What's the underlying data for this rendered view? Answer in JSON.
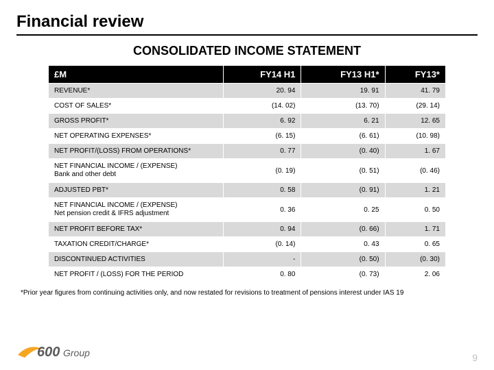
{
  "title": "Financial review",
  "subtitle": "CONSOLIDATED INCOME STATEMENT",
  "currency_label": "£M",
  "columns": [
    "FY14 H1",
    "FY13 H1*",
    "FY13*"
  ],
  "rows": [
    {
      "label": "REVENUE*",
      "vals": [
        "20. 94",
        "19. 91",
        "41. 79"
      ],
      "shade": true
    },
    {
      "label": "COST OF SALES*",
      "vals": [
        "(14. 02)",
        "(13. 70)",
        "(29. 14)"
      ],
      "shade": false
    },
    {
      "label": "GROSS PROFIT*",
      "vals": [
        "6. 92",
        "6. 21",
        "12. 65"
      ],
      "shade": true
    },
    {
      "label": "NET OPERATING EXPENSES*",
      "vals": [
        "(6. 15)",
        "(6. 61)",
        "(10. 98)"
      ],
      "shade": false
    },
    {
      "label": "NET PROFIT/(LOSS) FROM OPERATIONS*",
      "vals": [
        "0. 77",
        "(0. 40)",
        "1. 67"
      ],
      "shade": true
    },
    {
      "label": "NET FINANCIAL INCOME / (EXPENSE)\nBank and other debt",
      "vals": [
        "(0. 19)",
        "(0. 51)",
        "(0. 46)"
      ],
      "shade": false,
      "two_line": true
    },
    {
      "label": "ADJUSTED PBT*",
      "vals": [
        "0. 58",
        "(0. 91)",
        "1. 21"
      ],
      "shade": true
    },
    {
      "label": "NET FINANCIAL INCOME / (EXPENSE)\nNet pension credit & IFRS adjustment",
      "vals": [
        "0. 36",
        "0. 25",
        "0. 50"
      ],
      "shade": false,
      "two_line": true
    },
    {
      "label": "NET PROFIT BEFORE TAX*",
      "vals": [
        "0. 94",
        "(0. 66)",
        "1. 71"
      ],
      "shade": true
    },
    {
      "label": "TAXATION CREDIT/CHARGE*",
      "vals": [
        "(0. 14)",
        "0. 43",
        "0. 65"
      ],
      "shade": false
    },
    {
      "label": "DISCONTINUED ACTIVITIES",
      "vals": [
        "-",
        "(0. 50)",
        "(0. 30)"
      ],
      "shade": true
    },
    {
      "label": "NET PROFIT / (LOSS) FOR THE PERIOD",
      "vals": [
        "0. 80",
        "(0. 73)",
        "2. 06"
      ],
      "shade": false
    }
  ],
  "footnote": "*Prior year figures from continuing activities only, and now restated for revisions to treatment of pensions interest under IAS 19",
  "page_number": "9",
  "logo": {
    "text_600": "600",
    "text_group": "Group",
    "swoosh_color": "#f5a623",
    "text_color": "#5a5a5a"
  },
  "style": {
    "header_bg": "#000000",
    "header_fg": "#ffffff",
    "row_shade_bg": "#d9d9d9",
    "row_plain_bg": "#ffffff",
    "border_color": "#ffffff",
    "title_fontsize": 24,
    "subtitle_fontsize": 18,
    "header_fontsize": 13,
    "cell_fontsize": 10,
    "footnote_fontsize": 10,
    "pagenum_color": "#bfbfbf",
    "col_widths_pct": [
      44,
      18,
      19,
      19
    ]
  }
}
